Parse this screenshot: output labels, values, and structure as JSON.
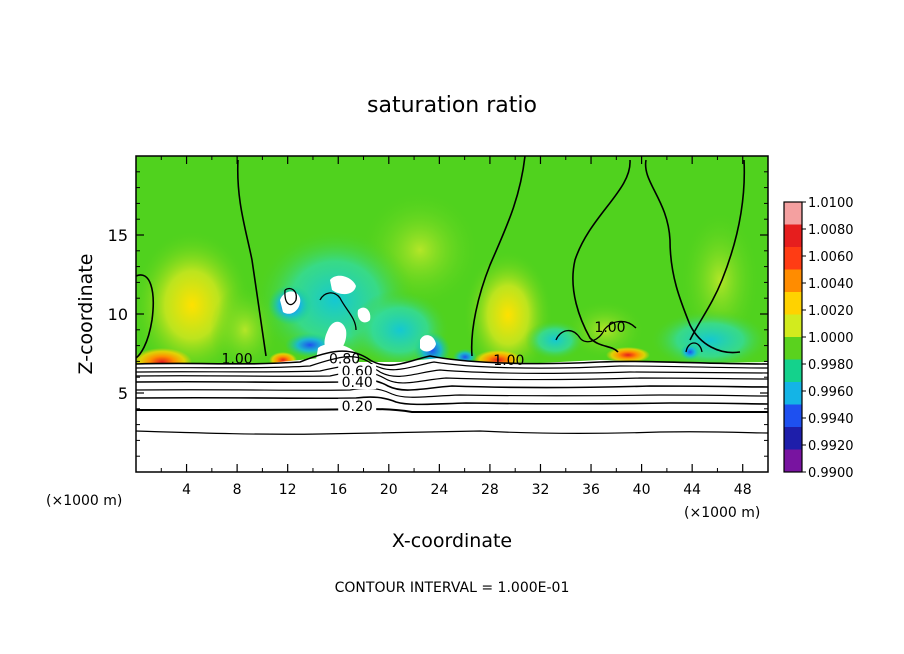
{
  "chart_data": {
    "type": "heatmap",
    "title": "saturation ratio",
    "xlabel": "X-coordinate",
    "ylabel": "Z-coordinate",
    "x_unit_left": "(×1000 m)",
    "x_unit_right": "(×1000 m)",
    "xlim": [
      0,
      50
    ],
    "ylim": [
      0,
      20
    ],
    "x_ticks": [
      "4",
      "8",
      "12",
      "16",
      "20",
      "24",
      "28",
      "32",
      "36",
      "40",
      "44",
      "48"
    ],
    "x_tick_values": [
      4,
      8,
      12,
      16,
      20,
      24,
      28,
      32,
      36,
      40,
      44,
      48
    ],
    "y_ticks": [
      "5",
      "10",
      "15"
    ],
    "y_tick_values": [
      5,
      10,
      15
    ],
    "colorbar": {
      "labels": [
        "1.0100",
        "1.0080",
        "1.0060",
        "1.0040",
        "1.0020",
        "1.0000",
        "0.9980",
        "0.9960",
        "0.9940",
        "0.9920",
        "0.9900"
      ],
      "values": [
        1.01,
        1.008,
        1.006,
        1.004,
        1.002,
        1.0,
        0.998,
        0.996,
        0.994,
        0.992,
        0.99
      ],
      "colors": [
        "#f4a0a0",
        "#e61e1e",
        "#ff3c14",
        "#ff8c00",
        "#ffd200",
        "#d2eb1e",
        "#5ad21e",
        "#14d28c",
        "#14b4e6",
        "#1e50f0",
        "#1e1eaa",
        "#7814a0"
      ]
    },
    "contour_labels": [
      {
        "text": "1.00",
        "x": 8,
        "z": 7.0
      },
      {
        "text": "1.00",
        "x": 29.5,
        "z": 6.9
      },
      {
        "text": "1.00",
        "x": 37.5,
        "z": 9.0
      },
      {
        "text": "0.80",
        "x": 16.5,
        "z": 7.0
      },
      {
        "text": "0.60",
        "x": 17.5,
        "z": 6.2
      },
      {
        "text": "0.40",
        "x": 17.5,
        "z": 5.5
      },
      {
        "text": "0.20",
        "x": 17.5,
        "z": 4.0
      }
    ],
    "contour_interval_text": "CONTOUR INTERVAL = 1.000E-01"
  }
}
